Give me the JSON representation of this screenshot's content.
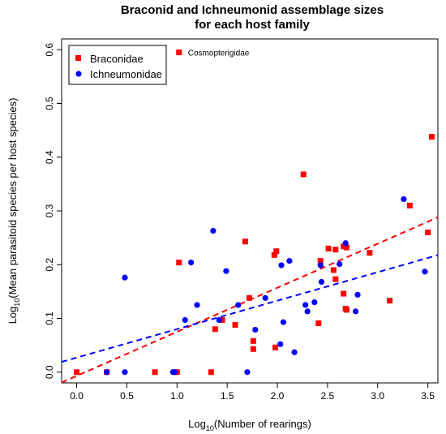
{
  "chart_data": {
    "type": "scatter",
    "title_line1": "Braconid and Ichneumonid assemblage sizes",
    "title_line2": "for each host family",
    "xlabel_prefix": "Log",
    "xlabel_sub": "10",
    "xlabel_rest": "(Number of rearings)",
    "ylabel_prefix": "Log",
    "ylabel_sub": "10",
    "ylabel_rest": "(Mean parasitoid species per host species)",
    "xlim": [
      -0.15,
      3.6
    ],
    "ylim": [
      -0.02,
      0.62
    ],
    "xticks": [
      "0.0",
      "0.5",
      "1.0",
      "1.5",
      "2.0",
      "2.5",
      "3.0",
      "3.5"
    ],
    "yticks": [
      "0.0",
      "0.1",
      "0.2",
      "0.3",
      "0.4",
      "0.5",
      "0.6"
    ],
    "grid": false,
    "legend_position": "top-left",
    "annotation": {
      "text": "Cosmopterigidae",
      "x": 1.02,
      "y": 0.595
    },
    "series": [
      {
        "name": "Braconidae",
        "marker": "square",
        "color": "#ff0000",
        "points": [
          [
            0.0,
            0.0
          ],
          [
            0.3,
            0.0
          ],
          [
            0.78,
            0.0
          ],
          [
            1.0,
            0.0
          ],
          [
            1.34,
            0.0
          ],
          [
            1.02,
            0.204
          ],
          [
            1.38,
            0.08
          ],
          [
            1.45,
            0.097
          ],
          [
            1.58,
            0.088
          ],
          [
            1.68,
            0.243
          ],
          [
            1.72,
            0.138
          ],
          [
            1.76,
            0.058
          ],
          [
            1.76,
            0.043
          ],
          [
            1.97,
            0.218
          ],
          [
            1.99,
            0.225
          ],
          [
            1.98,
            0.046
          ],
          [
            2.26,
            0.368
          ],
          [
            2.43,
            0.207
          ],
          [
            2.41,
            0.091
          ],
          [
            2.51,
            0.23
          ],
          [
            2.56,
            0.19
          ],
          [
            2.58,
            0.228
          ],
          [
            2.58,
            0.173
          ],
          [
            2.66,
            0.146
          ],
          [
            2.66,
            0.234
          ],
          [
            2.68,
            0.118
          ],
          [
            2.69,
            0.116
          ],
          [
            2.69,
            0.232
          ],
          [
            2.92,
            0.222
          ],
          [
            3.12,
            0.133
          ],
          [
            3.32,
            0.31
          ],
          [
            3.5,
            0.26
          ],
          [
            3.54,
            0.438
          ]
        ]
      },
      {
        "name": "Ichneumonidae",
        "marker": "circle",
        "color": "#0000ff",
        "points": [
          [
            0.3,
            0.0
          ],
          [
            0.48,
            0.0
          ],
          [
            0.48,
            0.176
          ],
          [
            0.96,
            0.0
          ],
          [
            0.98,
            0.0
          ],
          [
            1.08,
            0.097
          ],
          [
            1.14,
            0.204
          ],
          [
            1.2,
            0.125
          ],
          [
            1.36,
            0.263
          ],
          [
            1.42,
            0.097
          ],
          [
            1.49,
            0.188
          ],
          [
            1.61,
            0.125
          ],
          [
            1.7,
            0.0
          ],
          [
            1.78,
            0.079
          ],
          [
            1.88,
            0.138
          ],
          [
            2.03,
            0.052
          ],
          [
            2.04,
            0.199
          ],
          [
            2.06,
            0.093
          ],
          [
            2.12,
            0.207
          ],
          [
            2.17,
            0.037
          ],
          [
            2.28,
            0.125
          ],
          [
            2.3,
            0.113
          ],
          [
            2.37,
            0.13
          ],
          [
            2.43,
            0.199
          ],
          [
            2.44,
            0.168
          ],
          [
            2.62,
            0.201
          ],
          [
            2.68,
            0.24
          ],
          [
            2.78,
            0.113
          ],
          [
            2.8,
            0.144
          ],
          [
            3.26,
            0.322
          ],
          [
            3.47,
            0.187
          ]
        ]
      }
    ],
    "fit_lines": [
      {
        "series": "Braconidae",
        "color": "#ff0000",
        "intercept": -0.007,
        "slope": 0.082
      },
      {
        "series": "Ichneumonidae",
        "color": "#0000ff",
        "intercept": 0.027,
        "slope": 0.053
      }
    ]
  }
}
